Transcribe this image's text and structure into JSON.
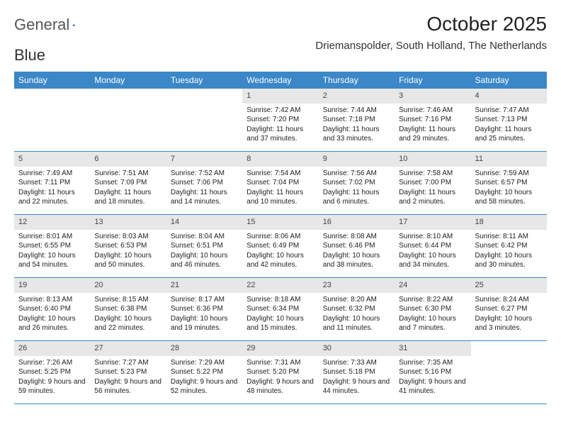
{
  "brand": {
    "part1": "General",
    "part2": "Blue"
  },
  "title": "October 2025",
  "location": "Driemanspolder, South Holland, The Netherlands",
  "colors": {
    "header_bg": "#3b87c8",
    "header_text": "#ffffff",
    "daynum_bg": "#e7e7e7",
    "row_border": "#3b87c8",
    "text": "#222222",
    "background": "#ffffff"
  },
  "weekdays": [
    "Sunday",
    "Monday",
    "Tuesday",
    "Wednesday",
    "Thursday",
    "Friday",
    "Saturday"
  ],
  "weeks": [
    [
      {
        "empty": true
      },
      {
        "empty": true
      },
      {
        "empty": true
      },
      {
        "num": "1",
        "sunrise": "Sunrise: 7:42 AM",
        "sunset": "Sunset: 7:20 PM",
        "daylight": "Daylight: 11 hours and 37 minutes."
      },
      {
        "num": "2",
        "sunrise": "Sunrise: 7:44 AM",
        "sunset": "Sunset: 7:18 PM",
        "daylight": "Daylight: 11 hours and 33 minutes."
      },
      {
        "num": "3",
        "sunrise": "Sunrise: 7:46 AM",
        "sunset": "Sunset: 7:16 PM",
        "daylight": "Daylight: 11 hours and 29 minutes."
      },
      {
        "num": "4",
        "sunrise": "Sunrise: 7:47 AM",
        "sunset": "Sunset: 7:13 PM",
        "daylight": "Daylight: 11 hours and 25 minutes."
      }
    ],
    [
      {
        "num": "5",
        "sunrise": "Sunrise: 7:49 AM",
        "sunset": "Sunset: 7:11 PM",
        "daylight": "Daylight: 11 hours and 22 minutes."
      },
      {
        "num": "6",
        "sunrise": "Sunrise: 7:51 AM",
        "sunset": "Sunset: 7:09 PM",
        "daylight": "Daylight: 11 hours and 18 minutes."
      },
      {
        "num": "7",
        "sunrise": "Sunrise: 7:52 AM",
        "sunset": "Sunset: 7:06 PM",
        "daylight": "Daylight: 11 hours and 14 minutes."
      },
      {
        "num": "8",
        "sunrise": "Sunrise: 7:54 AM",
        "sunset": "Sunset: 7:04 PM",
        "daylight": "Daylight: 11 hours and 10 minutes."
      },
      {
        "num": "9",
        "sunrise": "Sunrise: 7:56 AM",
        "sunset": "Sunset: 7:02 PM",
        "daylight": "Daylight: 11 hours and 6 minutes."
      },
      {
        "num": "10",
        "sunrise": "Sunrise: 7:58 AM",
        "sunset": "Sunset: 7:00 PM",
        "daylight": "Daylight: 11 hours and 2 minutes."
      },
      {
        "num": "11",
        "sunrise": "Sunrise: 7:59 AM",
        "sunset": "Sunset: 6:57 PM",
        "daylight": "Daylight: 10 hours and 58 minutes."
      }
    ],
    [
      {
        "num": "12",
        "sunrise": "Sunrise: 8:01 AM",
        "sunset": "Sunset: 6:55 PM",
        "daylight": "Daylight: 10 hours and 54 minutes."
      },
      {
        "num": "13",
        "sunrise": "Sunrise: 8:03 AM",
        "sunset": "Sunset: 6:53 PM",
        "daylight": "Daylight: 10 hours and 50 minutes."
      },
      {
        "num": "14",
        "sunrise": "Sunrise: 8:04 AM",
        "sunset": "Sunset: 6:51 PM",
        "daylight": "Daylight: 10 hours and 46 minutes."
      },
      {
        "num": "15",
        "sunrise": "Sunrise: 8:06 AM",
        "sunset": "Sunset: 6:49 PM",
        "daylight": "Daylight: 10 hours and 42 minutes."
      },
      {
        "num": "16",
        "sunrise": "Sunrise: 8:08 AM",
        "sunset": "Sunset: 6:46 PM",
        "daylight": "Daylight: 10 hours and 38 minutes."
      },
      {
        "num": "17",
        "sunrise": "Sunrise: 8:10 AM",
        "sunset": "Sunset: 6:44 PM",
        "daylight": "Daylight: 10 hours and 34 minutes."
      },
      {
        "num": "18",
        "sunrise": "Sunrise: 8:11 AM",
        "sunset": "Sunset: 6:42 PM",
        "daylight": "Daylight: 10 hours and 30 minutes."
      }
    ],
    [
      {
        "num": "19",
        "sunrise": "Sunrise: 8:13 AM",
        "sunset": "Sunset: 6:40 PM",
        "daylight": "Daylight: 10 hours and 26 minutes."
      },
      {
        "num": "20",
        "sunrise": "Sunrise: 8:15 AM",
        "sunset": "Sunset: 6:38 PM",
        "daylight": "Daylight: 10 hours and 22 minutes."
      },
      {
        "num": "21",
        "sunrise": "Sunrise: 8:17 AM",
        "sunset": "Sunset: 6:36 PM",
        "daylight": "Daylight: 10 hours and 19 minutes."
      },
      {
        "num": "22",
        "sunrise": "Sunrise: 8:18 AM",
        "sunset": "Sunset: 6:34 PM",
        "daylight": "Daylight: 10 hours and 15 minutes."
      },
      {
        "num": "23",
        "sunrise": "Sunrise: 8:20 AM",
        "sunset": "Sunset: 6:32 PM",
        "daylight": "Daylight: 10 hours and 11 minutes."
      },
      {
        "num": "24",
        "sunrise": "Sunrise: 8:22 AM",
        "sunset": "Sunset: 6:30 PM",
        "daylight": "Daylight: 10 hours and 7 minutes."
      },
      {
        "num": "25",
        "sunrise": "Sunrise: 8:24 AM",
        "sunset": "Sunset: 6:27 PM",
        "daylight": "Daylight: 10 hours and 3 minutes."
      }
    ],
    [
      {
        "num": "26",
        "sunrise": "Sunrise: 7:26 AM",
        "sunset": "Sunset: 5:25 PM",
        "daylight": "Daylight: 9 hours and 59 minutes."
      },
      {
        "num": "27",
        "sunrise": "Sunrise: 7:27 AM",
        "sunset": "Sunset: 5:23 PM",
        "daylight": "Daylight: 9 hours and 56 minutes."
      },
      {
        "num": "28",
        "sunrise": "Sunrise: 7:29 AM",
        "sunset": "Sunset: 5:22 PM",
        "daylight": "Daylight: 9 hours and 52 minutes."
      },
      {
        "num": "29",
        "sunrise": "Sunrise: 7:31 AM",
        "sunset": "Sunset: 5:20 PM",
        "daylight": "Daylight: 9 hours and 48 minutes."
      },
      {
        "num": "30",
        "sunrise": "Sunrise: 7:33 AM",
        "sunset": "Sunset: 5:18 PM",
        "daylight": "Daylight: 9 hours and 44 minutes."
      },
      {
        "num": "31",
        "sunrise": "Sunrise: 7:35 AM",
        "sunset": "Sunset: 5:16 PM",
        "daylight": "Daylight: 9 hours and 41 minutes."
      },
      {
        "empty": true
      }
    ]
  ]
}
